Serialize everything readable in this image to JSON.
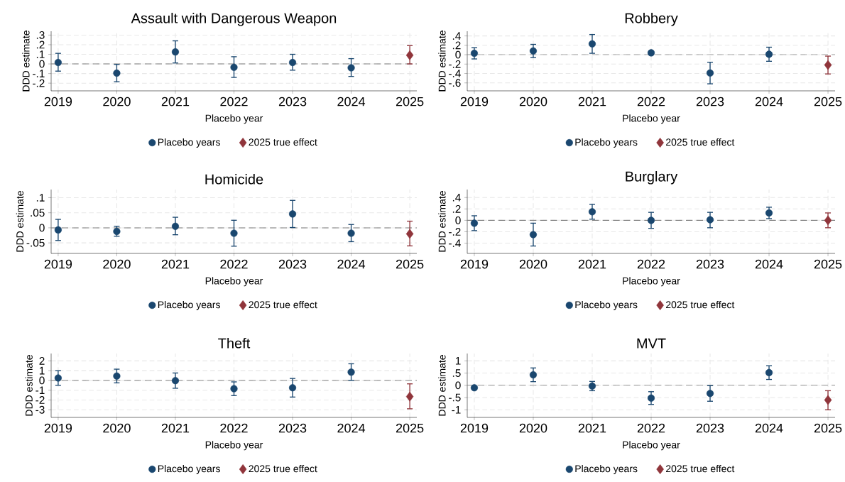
{
  "chart_data": [
    {
      "type": "scatter",
      "title": "Assault with Dangerous Weapon",
      "xlabel": "Placebo year",
      "ylabel": "DDD estimate",
      "legend": "bottom",
      "grid": true,
      "xlim": [
        2018.88,
        2025.12
      ],
      "ylim": [
        -0.28,
        0.34
      ],
      "xticks": [
        2019,
        2020,
        2021,
        2022,
        2023,
        2024,
        2025
      ],
      "yticks": [
        {
          "value": -0.2,
          "label": "-.2"
        },
        {
          "value": -0.1,
          "label": "-.1"
        },
        0,
        {
          "value": 0.1,
          "label": ".1"
        },
        {
          "value": 0.2,
          "label": ".2"
        },
        {
          "value": 0.3,
          "label": ".3"
        }
      ],
      "ref_lines": [
        {
          "axis": "y",
          "value": 0,
          "color": "#808080",
          "line_style": "dashed"
        }
      ],
      "series": [
        {
          "name": "Placebo years",
          "color": "#1a476f",
          "marker": "circle",
          "x": [
            2019,
            2020,
            2021,
            2022,
            2023,
            2024
          ],
          "values": [
            0.015,
            -0.095,
            0.125,
            -0.035,
            0.015,
            -0.04
          ],
          "errors": [
            [
              -0.075,
              0.11
            ],
            [
              -0.185,
              -0.005
            ],
            [
              0.01,
              0.24
            ],
            [
              -0.14,
              0.075
            ],
            [
              -0.065,
              0.1
            ],
            [
              -0.13,
              0.055
            ]
          ]
        },
        {
          "name": "2025 true effect",
          "color": "#90353b",
          "marker": "diamond",
          "x": [
            2025
          ],
          "values": [
            0.09
          ],
          "errors": [
            [
              0.0,
              0.19
            ]
          ]
        }
      ]
    },
    {
      "type": "scatter",
      "title": "Robbery",
      "xlabel": "Placebo year",
      "ylabel": "DDD estimate",
      "legend": "bottom",
      "grid": true,
      "xlim": [
        2018.88,
        2025.12
      ],
      "ylim": [
        -0.77,
        0.5
      ],
      "xticks": [
        2019,
        2020,
        2021,
        2022,
        2023,
        2024,
        2025
      ],
      "yticks": [
        {
          "value": -0.6,
          "label": "-.6"
        },
        {
          "value": -0.4,
          "label": "-.4"
        },
        {
          "value": -0.2,
          "label": "-.2"
        },
        0,
        {
          "value": 0.2,
          "label": ".2"
        },
        {
          "value": 0.4,
          "label": ".4"
        }
      ],
      "ref_lines": [
        {
          "axis": "y",
          "value": 0,
          "color": "#808080",
          "line_style": "dashed"
        }
      ],
      "series": [
        {
          "name": "Placebo years",
          "color": "#1a476f",
          "marker": "circle",
          "x": [
            2019,
            2020,
            2021,
            2022,
            2023,
            2024
          ],
          "values": [
            0.03,
            0.08,
            0.23,
            0.04,
            -0.39,
            0.01
          ],
          "errors": [
            [
              -0.09,
              0.15
            ],
            [
              -0.06,
              0.22
            ],
            [
              0.03,
              0.43
            ],
            [
              0.0,
              0.08
            ],
            [
              -0.62,
              -0.16
            ],
            [
              -0.14,
              0.16
            ]
          ]
        },
        {
          "name": "2025 true effect",
          "color": "#90353b",
          "marker": "diamond",
          "x": [
            2025
          ],
          "values": [
            -0.22
          ],
          "errors": [
            [
              -0.41,
              -0.03
            ]
          ]
        }
      ]
    },
    {
      "type": "scatter",
      "title": "Homicide",
      "xlabel": "Placebo year",
      "ylabel": "DDD estimate",
      "legend": "bottom",
      "grid": true,
      "xlim": [
        2018.88,
        2025.12
      ],
      "ylim": [
        -0.085,
        0.127
      ],
      "xticks": [
        2019,
        2020,
        2021,
        2022,
        2023,
        2024,
        2025
      ],
      "yticks": [
        {
          "value": -0.05,
          "label": "-.05"
        },
        0,
        {
          "value": 0.05,
          "label": ".05"
        },
        {
          "value": 0.1,
          "label": ".1"
        }
      ],
      "ref_lines": [
        {
          "axis": "y",
          "value": 0,
          "color": "#808080",
          "line_style": "dashed"
        }
      ],
      "series": [
        {
          "name": "Placebo years",
          "color": "#1a476f",
          "marker": "circle",
          "x": [
            2019,
            2020,
            2021,
            2022,
            2023,
            2024
          ],
          "values": [
            -0.007,
            -0.012,
            0.005,
            -0.018,
            0.046,
            -0.018
          ],
          "errors": [
            [
              -0.042,
              0.028
            ],
            [
              -0.028,
              0.005
            ],
            [
              -0.023,
              0.035
            ],
            [
              -0.061,
              0.025
            ],
            [
              0.001,
              0.091
            ],
            [
              -0.046,
              0.011
            ]
          ]
        },
        {
          "name": "2025 true effect",
          "color": "#90353b",
          "marker": "diamond",
          "x": [
            2025
          ],
          "values": [
            -0.02
          ],
          "errors": [
            [
              -0.06,
              0.022
            ]
          ]
        }
      ]
    },
    {
      "type": "scatter",
      "title": "Burglary",
      "xlabel": "Placebo year",
      "ylabel": "DDD estimate",
      "legend": "bottom",
      "grid": true,
      "xlim": [
        2018.88,
        2025.12
      ],
      "ylim": [
        -0.58,
        0.54
      ],
      "xticks": [
        2019,
        2020,
        2021,
        2022,
        2023,
        2024,
        2025
      ],
      "yticks": [
        {
          "value": -0.4,
          "label": "-.4"
        },
        {
          "value": -0.2,
          "label": "-.2"
        },
        0,
        {
          "value": 0.2,
          "label": ".2"
        },
        {
          "value": 0.4,
          "label": ".4"
        }
      ],
      "ref_lines": [
        {
          "axis": "y",
          "value": 0,
          "color": "#808080",
          "line_style": "dashed"
        }
      ],
      "series": [
        {
          "name": "Placebo years",
          "color": "#1a476f",
          "marker": "circle",
          "x": [
            2019,
            2020,
            2021,
            2022,
            2023,
            2024
          ],
          "values": [
            -0.05,
            -0.25,
            0.15,
            0.0,
            0.01,
            0.13
          ],
          "errors": [
            [
              -0.18,
              0.08
            ],
            [
              -0.45,
              -0.05
            ],
            [
              0.02,
              0.28
            ],
            [
              -0.14,
              0.14
            ],
            [
              -0.13,
              0.14
            ],
            [
              0.03,
              0.23
            ]
          ]
        },
        {
          "name": "2025 true effect",
          "color": "#90353b",
          "marker": "diamond",
          "x": [
            2025
          ],
          "values": [
            0.0
          ],
          "errors": [
            [
              -0.13,
              0.13
            ]
          ]
        }
      ]
    },
    {
      "type": "scatter",
      "title": "Theft",
      "xlabel": "Placebo year",
      "ylabel": "DDD estimate",
      "legend": "bottom",
      "grid": true,
      "xlim": [
        2018.88,
        2025.12
      ],
      "ylim": [
        -3.78,
        2.75
      ],
      "xticks": [
        2019,
        2020,
        2021,
        2022,
        2023,
        2024,
        2025
      ],
      "yticks": [
        -3,
        -2,
        -1,
        0,
        1,
        2
      ],
      "ref_lines": [
        {
          "axis": "y",
          "value": 0,
          "color": "#808080",
          "line_style": "dashed"
        }
      ],
      "series": [
        {
          "name": "Placebo years",
          "color": "#1a476f",
          "marker": "circle",
          "x": [
            2019,
            2020,
            2021,
            2022,
            2023,
            2024
          ],
          "values": [
            0.25,
            0.45,
            -0.02,
            -0.85,
            -0.75,
            0.85
          ],
          "errors": [
            [
              -0.5,
              1.0
            ],
            [
              -0.25,
              1.15
            ],
            [
              -0.8,
              0.76
            ],
            [
              -1.55,
              -0.15
            ],
            [
              -1.7,
              0.2
            ],
            [
              0.0,
              1.7
            ]
          ]
        },
        {
          "name": "2025 true effect",
          "color": "#90353b",
          "marker": "diamond",
          "x": [
            2025
          ],
          "values": [
            -1.65
          ],
          "errors": [
            [
              -2.9,
              -0.35
            ]
          ]
        }
      ]
    },
    {
      "type": "scatter",
      "title": "MVT",
      "xlabel": "Placebo year",
      "ylabel": "DDD estimate",
      "legend": "bottom",
      "grid": true,
      "xlim": [
        2018.88,
        2025.12
      ],
      "ylim": [
        -1.31,
        1.3
      ],
      "xticks": [
        2019,
        2020,
        2021,
        2022,
        2023,
        2024,
        2025
      ],
      "yticks": [
        -1,
        {
          "value": -0.5,
          "label": "-.5"
        },
        0,
        {
          "value": 0.5,
          "label": ".5"
        },
        1
      ],
      "ref_lines": [
        {
          "axis": "y",
          "value": 0,
          "color": "#808080",
          "line_style": "dashed"
        }
      ],
      "series": [
        {
          "name": "Placebo years",
          "color": "#1a476f",
          "marker": "circle",
          "x": [
            2019,
            2020,
            2021,
            2022,
            2023,
            2024
          ],
          "values": [
            -0.1,
            0.43,
            -0.03,
            -0.52,
            -0.33,
            0.52
          ],
          "errors": [
            null,
            [
              0.15,
              0.71
            ],
            [
              -0.22,
              0.16
            ],
            [
              -0.78,
              -0.26
            ],
            [
              -0.65,
              -0.01
            ],
            [
              0.24,
              0.8
            ]
          ]
        },
        {
          "name": "2025 true effect",
          "color": "#90353b",
          "marker": "diamond",
          "x": [
            2025
          ],
          "values": [
            -0.6
          ],
          "errors": [
            [
              -1.0,
              -0.22
            ]
          ]
        }
      ]
    }
  ]
}
